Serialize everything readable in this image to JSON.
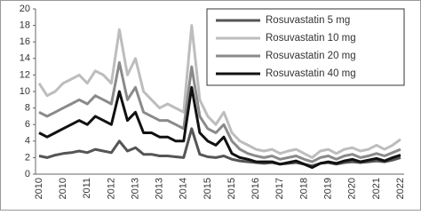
{
  "chart_data": {
    "type": "line",
    "categories": [
      "2010",
      null,
      null,
      "2010",
      null,
      null,
      "2011",
      null,
      null,
      "2012",
      null,
      null,
      "2013",
      null,
      null,
      "2013",
      null,
      null,
      "2014",
      null,
      null,
      "2015",
      null,
      null,
      "2015",
      null,
      null,
      "2016",
      null,
      null,
      "2017",
      null,
      null,
      "2018",
      null,
      null,
      "2019",
      null,
      null,
      "2020",
      null,
      null,
      "2021",
      null,
      null,
      "2022"
    ],
    "series": [
      {
        "name": "Rosuvastatin 5 mg",
        "color": "#555555",
        "values": [
          2.2,
          2,
          2.3,
          2.5,
          2.6,
          2.8,
          2.6,
          3,
          2.8,
          2.6,
          4,
          2.8,
          3.2,
          2.4,
          2.4,
          2.2,
          2.2,
          2.1,
          2,
          5.5,
          2.4,
          2.1,
          2,
          2.2,
          1.8,
          1.6,
          1.5,
          1.4,
          1.3,
          1.4,
          1.2,
          1.3,
          1.4,
          1.2,
          1,
          1.3,
          1.4,
          1.2,
          1.4,
          1.5,
          1.4,
          1.5,
          1.6,
          1.5,
          1.7,
          2
        ]
      },
      {
        "name": "Rosuvastatin 10 mg",
        "color": "#bdbdbd",
        "values": [
          11,
          9.5,
          10,
          11,
          11.5,
          12,
          11,
          12.5,
          12,
          11,
          17.5,
          12,
          14,
          10,
          9,
          8,
          8.5,
          8,
          7.5,
          18,
          9,
          7,
          6,
          7.5,
          5,
          4,
          3.5,
          3,
          2.8,
          3,
          2.5,
          2.8,
          3,
          2.5,
          2,
          2.8,
          3,
          2.5,
          3,
          3.2,
          2.8,
          3,
          3.5,
          3,
          3.5,
          4.2
        ]
      },
      {
        "name": "Rosuvastatin 20 mg",
        "color": "#8a8a8a",
        "values": [
          7.5,
          7,
          7.5,
          8,
          8.5,
          9,
          8.5,
          9.5,
          9,
          8.5,
          13.5,
          9,
          10.5,
          7.5,
          7,
          6.5,
          6.5,
          6,
          5.5,
          13,
          7,
          5.5,
          5,
          6,
          4,
          3,
          2.5,
          2.2,
          2,
          2.2,
          1.8,
          2,
          2.2,
          1.8,
          1.5,
          2,
          2.2,
          1.8,
          2.2,
          2.4,
          2,
          2.2,
          2.5,
          2.2,
          2.6,
          3
        ]
      },
      {
        "name": "Rosuvastatin 40 mg",
        "color": "#111111",
        "values": [
          5,
          4.5,
          5,
          5.5,
          6,
          6.5,
          6,
          7,
          6.5,
          6,
          10,
          6.5,
          7.5,
          5,
          5,
          4.5,
          4.5,
          4,
          4,
          10.5,
          5,
          4,
          3.5,
          4.5,
          2.5,
          2,
          1.8,
          1.5,
          1.5,
          1.5,
          1.2,
          1.4,
          1.6,
          1.2,
          0.8,
          1.3,
          1.5,
          1.3,
          1.6,
          1.8,
          1.5,
          1.7,
          1.9,
          1.6,
          2,
          2.3
        ]
      }
    ],
    "ylim": [
      0,
      20
    ],
    "yticks": [
      0,
      2,
      4,
      6,
      8,
      10,
      12,
      14,
      16,
      18,
      20
    ],
    "grid": false,
    "legend": "top-right"
  }
}
